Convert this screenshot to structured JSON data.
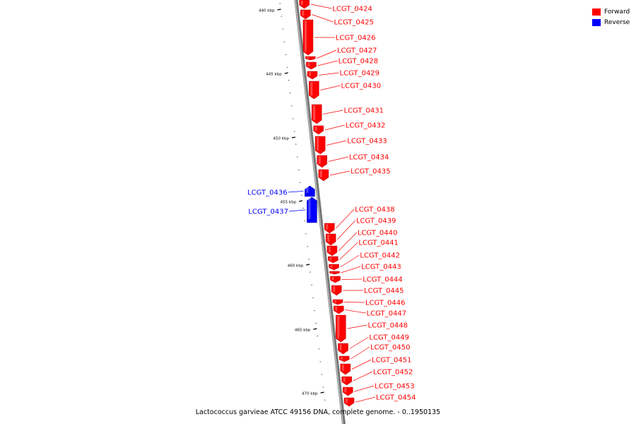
{
  "caption": "Lactococcus garvieae ATCC 49156 DNA, complete genome. - 0..1950135",
  "legend": [
    {
      "label": "Forward",
      "color": "#ff0000"
    },
    {
      "label": "Reverse",
      "color": "#0000ff"
    }
  ],
  "colors": {
    "forward": "#ff0000",
    "reverse": "#0000ff",
    "backbone": "#888888"
  },
  "scale_labels": [
    "440 kbp",
    "445 kbp",
    "450 kbp",
    "455 kbp",
    "460 kbp",
    "465 kbp",
    "470 kbp"
  ],
  "genes": [
    {
      "label": "LCGT_0424",
      "strand": "forward"
    },
    {
      "label": "LCGT_0425",
      "strand": "forward"
    },
    {
      "label": "LCGT_0426",
      "strand": "forward"
    },
    {
      "label": "LCGT_0427",
      "strand": "forward"
    },
    {
      "label": "LCGT_0428",
      "strand": "forward"
    },
    {
      "label": "LCGT_0429",
      "strand": "forward"
    },
    {
      "label": "LCGT_0430",
      "strand": "forward"
    },
    {
      "label": "LCGT_0431",
      "strand": "forward"
    },
    {
      "label": "LCGT_0432",
      "strand": "forward"
    },
    {
      "label": "LCGT_0433",
      "strand": "forward"
    },
    {
      "label": "LCGT_0434",
      "strand": "forward"
    },
    {
      "label": "LCGT_0435",
      "strand": "forward"
    },
    {
      "label": "LCGT_0436",
      "strand": "reverse"
    },
    {
      "label": "LCGT_0437",
      "strand": "reverse"
    },
    {
      "label": "LCGT_0438",
      "strand": "forward"
    },
    {
      "label": "LCGT_0439",
      "strand": "forward"
    },
    {
      "label": "LCGT_0440",
      "strand": "forward"
    },
    {
      "label": "LCGT_0441",
      "strand": "forward"
    },
    {
      "label": "LCGT_0442",
      "strand": "forward"
    },
    {
      "label": "LCGT_0443",
      "strand": "forward"
    },
    {
      "label": "LCGT_0444",
      "strand": "forward"
    },
    {
      "label": "LCGT_0445",
      "strand": "forward"
    },
    {
      "label": "LCGT_0446",
      "strand": "forward"
    },
    {
      "label": "LCGT_0447",
      "strand": "forward"
    },
    {
      "label": "LCGT_0448",
      "strand": "forward"
    },
    {
      "label": "LCGT_0449",
      "strand": "forward"
    },
    {
      "label": "LCGT_0450",
      "strand": "forward"
    },
    {
      "label": "LCGT_0451",
      "strand": "forward"
    },
    {
      "label": "LCGT_0452",
      "strand": "forward"
    },
    {
      "label": "LCGT_0453",
      "strand": "forward"
    },
    {
      "label": "LCGT_0454",
      "strand": "forward"
    }
  ]
}
